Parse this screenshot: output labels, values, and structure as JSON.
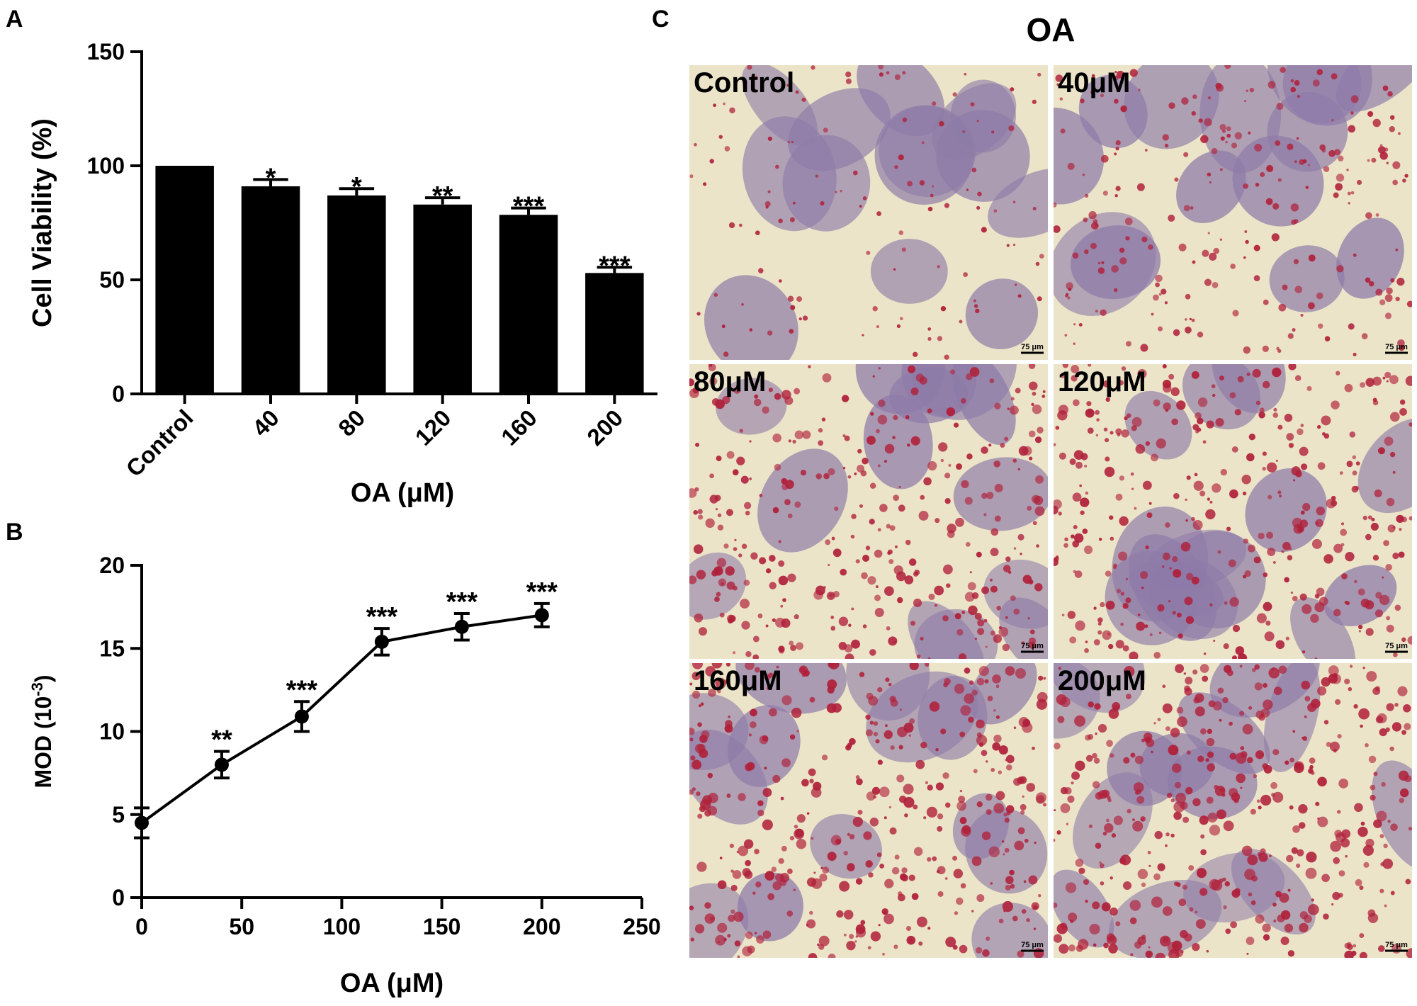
{
  "panels": {
    "A": "A",
    "B": "B",
    "C": "C"
  },
  "chart_data": [
    {
      "type": "bar",
      "panel": "A",
      "categories": [
        "Control",
        "40",
        "80",
        "120",
        "160",
        "200"
      ],
      "values": [
        100,
        91,
        87,
        83,
        78.5,
        53
      ],
      "errors": [
        0,
        3,
        3,
        3,
        3,
        2.5
      ],
      "significance": [
        "",
        "*",
        "*",
        "**",
        "***",
        "***"
      ],
      "xlabel": "OA (μM)",
      "ylabel": "Cell Viability (%)",
      "ylim": [
        0,
        150
      ],
      "yticks": [
        0,
        50,
        100,
        150
      ],
      "bar_color": "#000000"
    },
    {
      "type": "line",
      "panel": "B",
      "x": [
        0,
        40,
        80,
        120,
        160,
        200
      ],
      "y": [
        4.5,
        8.0,
        10.9,
        15.4,
        16.3,
        17.0
      ],
      "errors": [
        0.9,
        0.8,
        0.9,
        0.8,
        0.8,
        0.7
      ],
      "significance": [
        "",
        "**",
        "***",
        "***",
        "***",
        "***"
      ],
      "xlabel": "OA (μM)",
      "ylabel_main": "MOD (10",
      "ylabel_sup": "-3",
      "ylabel_end": ")",
      "xlim": [
        0,
        250
      ],
      "ylim": [
        0,
        20
      ],
      "xticks": [
        0,
        50,
        100,
        150,
        200,
        250
      ],
      "yticks": [
        0,
        5,
        10,
        15,
        20
      ],
      "line_color": "#000000"
    }
  ],
  "micrographs": {
    "title": "OA",
    "scale_bar": "75 μm",
    "panels": [
      {
        "label": "Control",
        "density": 0.15
      },
      {
        "label": "40μM",
        "density": 0.45
      },
      {
        "label": "80μM",
        "density": 0.7
      },
      {
        "label": "120μM",
        "density": 0.75
      },
      {
        "label": "160μM",
        "density": 0.85
      },
      {
        "label": "200μM",
        "density": 0.9
      }
    ],
    "colors": {
      "background": "#ece4c8",
      "cell": "#8e7ba8",
      "droplet": "#b0203a"
    }
  }
}
